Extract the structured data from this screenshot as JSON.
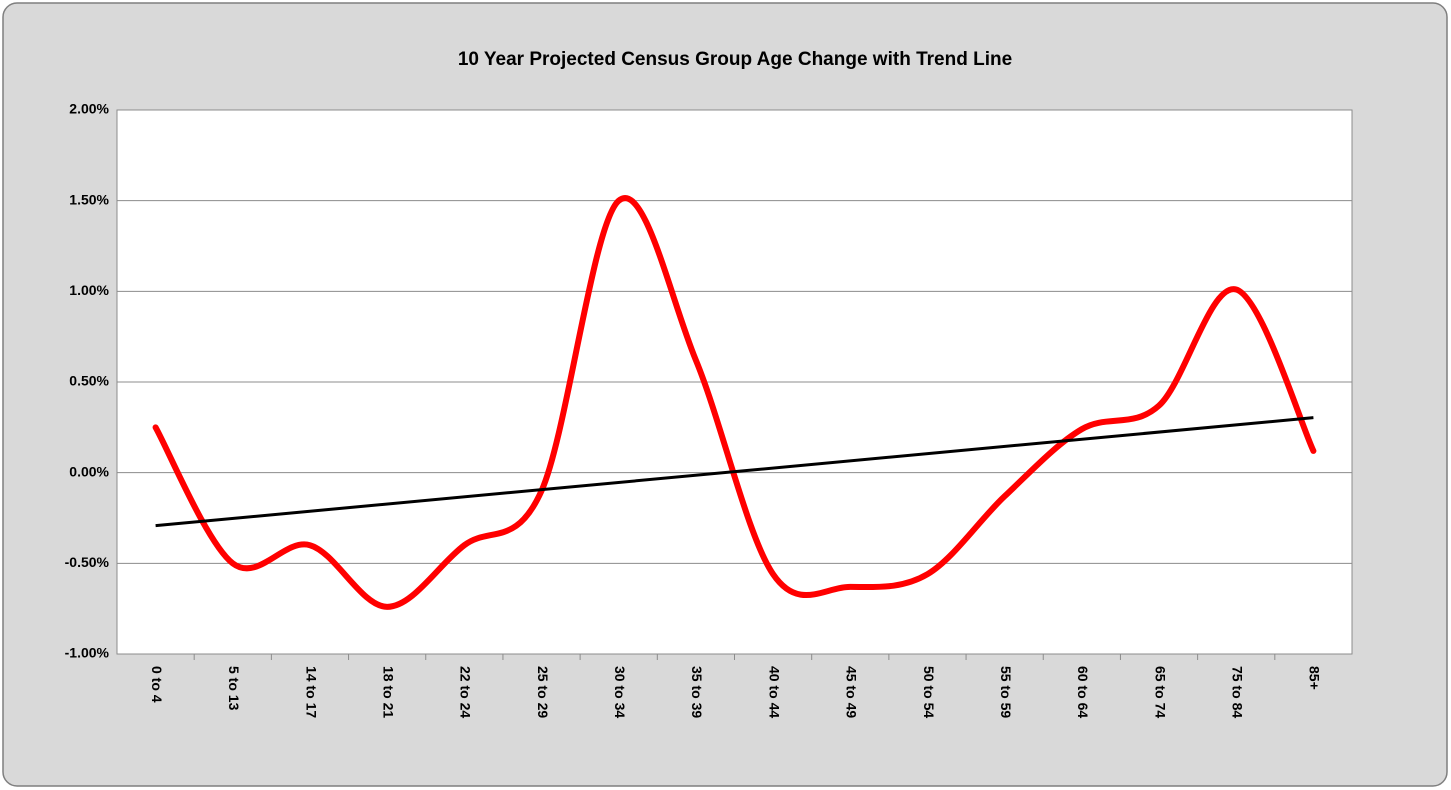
{
  "chart_data": {
    "type": "line",
    "title": "10 Year Projected Census Group Age Change with Trend Line",
    "categories": [
      "0 to 4",
      "5 to 13",
      "14 to 17",
      "18 to 21",
      "22 to 24",
      "25 to 29",
      "30 to 34",
      "35 to 39",
      "40 to 44",
      "45 to 49",
      "50 to 54",
      "55 to 59",
      "60 to 64",
      "65 to 74",
      "75 to 84",
      "85+"
    ],
    "values": [
      0.25,
      -0.5,
      -0.4,
      -0.74,
      -0.4,
      -0.1,
      1.5,
      0.62,
      -0.56,
      -0.63,
      -0.56,
      -0.13,
      0.24,
      0.37,
      1.01,
      0.12
    ],
    "color": "#ff0000",
    "smooth": true,
    "trendline": "linear",
    "trendline_color": "#000000",
    "ylim": [
      -1,
      2
    ],
    "yticks": [
      {
        "value": -1,
        "label": "-1.00%"
      },
      {
        "value": -0.5,
        "label": "-0.50%"
      },
      {
        "value": 0,
        "label": "0.00%"
      },
      {
        "value": 0.5,
        "label": "0.50%"
      },
      {
        "value": 1,
        "label": "1.00%"
      },
      {
        "value": 1.5,
        "label": "1.50%"
      },
      {
        "value": 2,
        "label": "2.00%"
      }
    ],
    "negative_tick_color": "#ff0000",
    "grid": true
  }
}
